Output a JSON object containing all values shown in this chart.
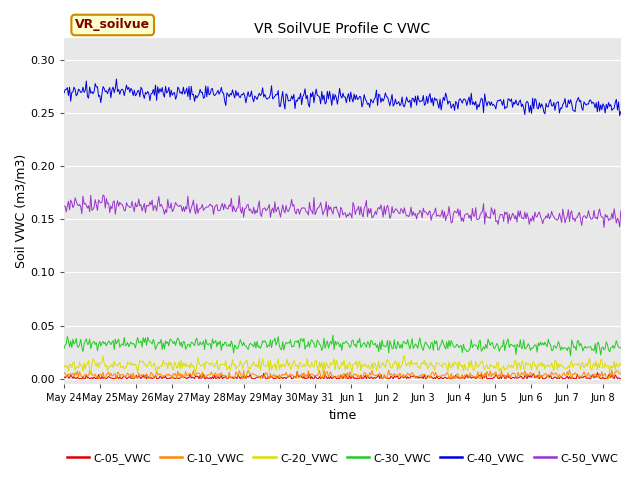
{
  "title": "VR SoilVUE Profile C VWC",
  "xlabel": "time",
  "ylabel": "Soil VWC (m3/m3)",
  "ylim": [
    -0.005,
    0.32
  ],
  "series": {
    "C-05_VWC": {
      "color": "#dd0000",
      "base": 0.001,
      "noise": 0.0015,
      "trend": 0.0
    },
    "C-10_VWC": {
      "color": "#ff8800",
      "base": 0.003,
      "noise": 0.002,
      "trend": 0.0
    },
    "C-20_VWC": {
      "color": "#dddd00",
      "base": 0.013,
      "noise": 0.003,
      "trend": -0.001
    },
    "C-30_VWC": {
      "color": "#22cc22",
      "base": 0.034,
      "noise": 0.003,
      "trend": -0.004
    },
    "C-40_VWC": {
      "color": "#0000dd",
      "base": 0.272,
      "noise": 0.004,
      "trend": -0.016
    },
    "C-50_VWC": {
      "color": "#9933cc",
      "base": 0.164,
      "noise": 0.004,
      "trend": -0.012
    }
  },
  "legend_label": "VR_soilvue",
  "legend_bg": "#ffffcc",
  "legend_edge": "#cc8800",
  "legend_text_color": "#800000",
  "plot_bg": "#e8e8e8",
  "fig_bg": "#ffffff",
  "n_points": 500,
  "start_day": 0,
  "end_day": 15.5,
  "yticks": [
    0.0,
    0.05,
    0.1,
    0.15,
    0.2,
    0.25,
    0.3
  ],
  "xtick_labels": [
    "May 24",
    "May 25",
    "May 26",
    "May 27",
    "May 28",
    "May 29",
    "May 30",
    "May 31",
    "Jun 1",
    "Jun 2",
    "Jun 3",
    "Jun 4",
    "Jun 5",
    "Jun 6",
    "Jun 7",
    "Jun 8"
  ],
  "xtick_days": [
    0,
    1,
    2,
    3,
    4,
    5,
    6,
    7,
    8,
    9,
    10,
    11,
    12,
    13,
    14,
    15
  ]
}
